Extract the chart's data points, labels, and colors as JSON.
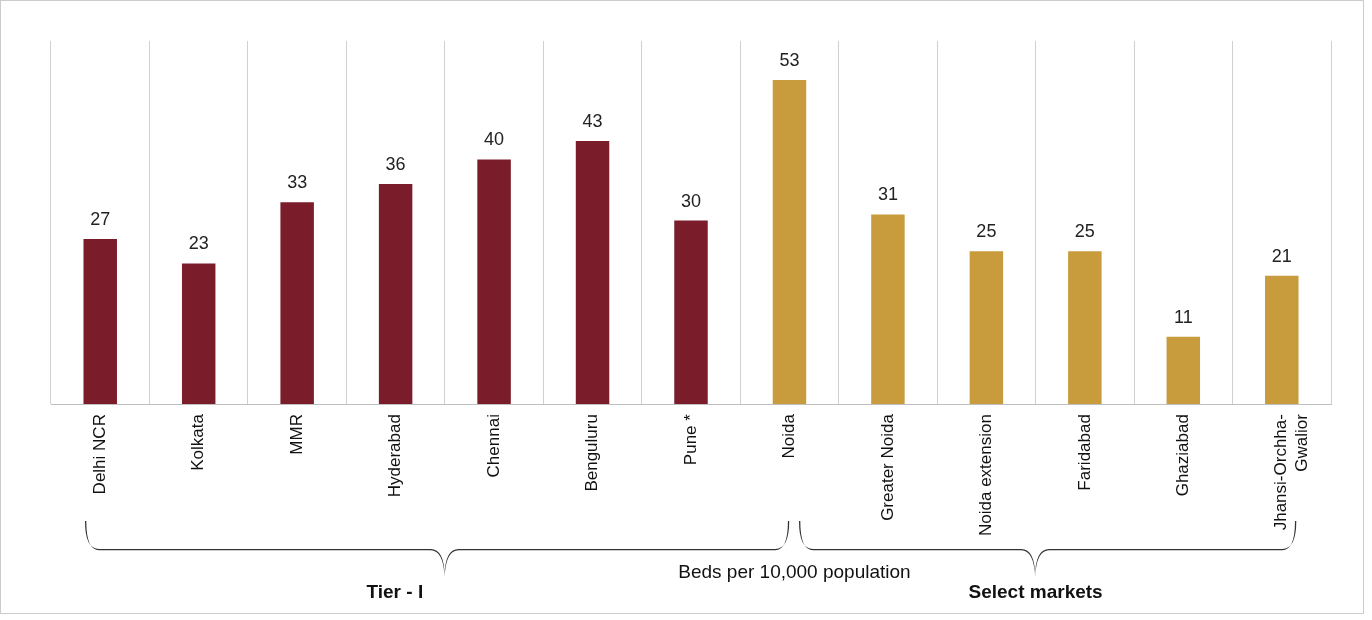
{
  "chart_data": {
    "type": "bar",
    "xlabel": "Beds per 10,000 population",
    "categories": [
      "Delhi NCR",
      "Kolkata",
      "MMR",
      "Hyderabad",
      "Chennai",
      "Benguluru",
      "Pune *",
      "Noida",
      "Greater Noida",
      "Noida extension",
      "Faridabad",
      "Ghaziabad",
      "Jhansi-Orchha-Gwalior"
    ],
    "values": [
      27,
      23,
      33,
      36,
      40,
      43,
      30,
      53,
      31,
      25,
      25,
      11,
      21
    ],
    "colors": [
      "#7b1c2a",
      "#7b1c2a",
      "#7b1c2a",
      "#7b1c2a",
      "#7b1c2a",
      "#7b1c2a",
      "#7b1c2a",
      "#c89b3c",
      "#c89b3c",
      "#c89b3c",
      "#c89b3c",
      "#c89b3c",
      "#c89b3c"
    ],
    "data_labels": true,
    "grid": "x",
    "legend": false,
    "annotations": [
      "Tier - I",
      "Select markets"
    ]
  }
}
